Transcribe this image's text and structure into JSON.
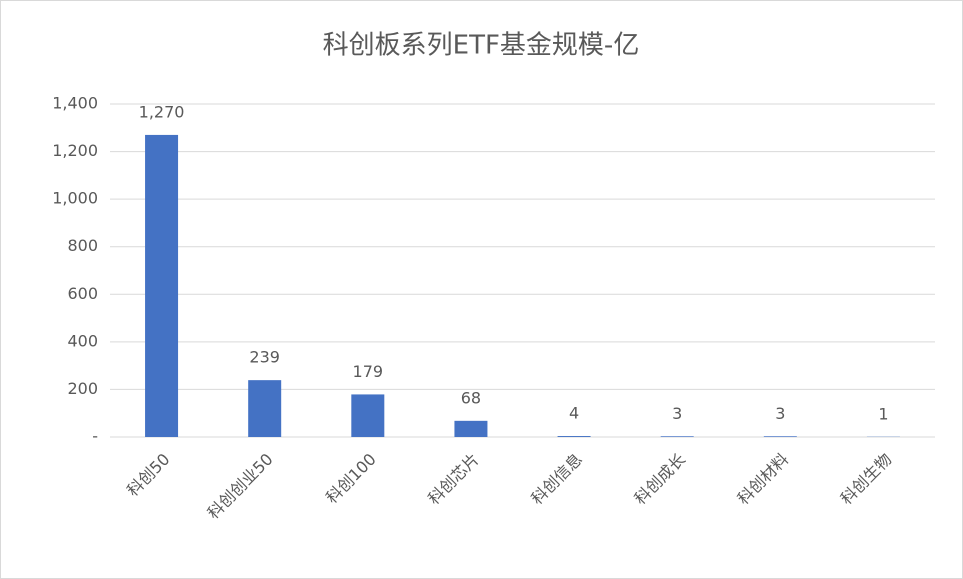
{
  "chart_data": {
    "type": "bar",
    "title": "科创板系列ETF基金规模-亿",
    "categories": [
      "科创50",
      "科创创业50",
      "科创100",
      "科创芯片",
      "科创信息",
      "科创成长",
      "科创材料",
      "科创生物"
    ],
    "values": [
      1270,
      239,
      179,
      68,
      4,
      3,
      3,
      1
    ],
    "value_labels": [
      "1,270",
      "239",
      "179",
      "68",
      "4",
      "3",
      "3",
      "1"
    ],
    "color": "#4472c4",
    "ylim": [
      0,
      1400
    ],
    "yticks": [
      {
        "value": 0,
        "label": "-"
      },
      200,
      400,
      600,
      800,
      {
        "value": 1000,
        "label": "1,000"
      },
      {
        "value": 1200,
        "label": "1,200"
      },
      {
        "value": 1400,
        "label": "1,400"
      }
    ],
    "grid": true
  }
}
